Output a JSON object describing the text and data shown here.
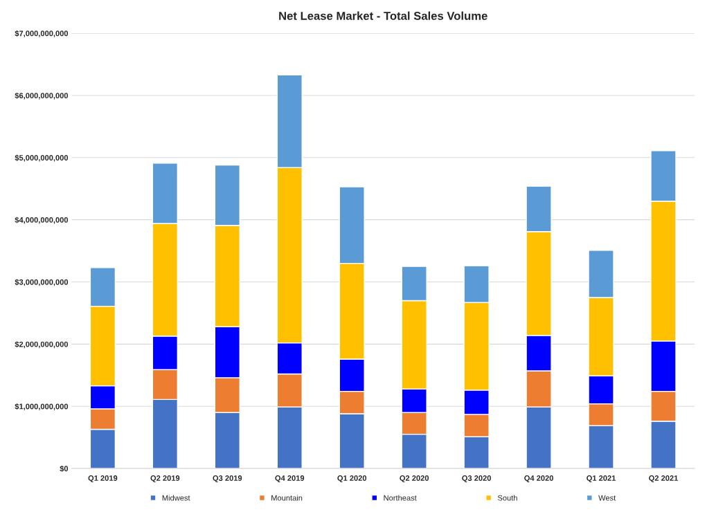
{
  "chart_data": {
    "type": "bar",
    "title": "Net Lease Market - Total Sales Volume",
    "stacked": true,
    "categories": [
      "Q1 2019",
      "Q2 2019",
      "Q3 2019",
      "Q4 2019",
      "Q1 2020",
      "Q2 2020",
      "Q3 2020",
      "Q4 2020",
      "Q1 2021",
      "Q2 2021"
    ],
    "series": [
      {
        "name": "Midwest",
        "color": "#4472c4",
        "values": [
          630000000,
          1110000000,
          900000000,
          990000000,
          880000000,
          550000000,
          510000000,
          990000000,
          690000000,
          760000000
        ]
      },
      {
        "name": "Mountain",
        "color": "#ed7d31",
        "values": [
          330000000,
          480000000,
          560000000,
          530000000,
          360000000,
          350000000,
          360000000,
          580000000,
          350000000,
          480000000
        ]
      },
      {
        "name": "Northeast",
        "color": "#0000ff",
        "values": [
          370000000,
          540000000,
          820000000,
          500000000,
          520000000,
          380000000,
          390000000,
          570000000,
          450000000,
          810000000
        ]
      },
      {
        "name": "South",
        "color": "#ffc000",
        "values": [
          1280000000,
          1810000000,
          1630000000,
          2820000000,
          1540000000,
          1420000000,
          1410000000,
          1670000000,
          1260000000,
          2250000000
        ]
      },
      {
        "name": "West",
        "color": "#5b9bd5",
        "values": [
          620000000,
          970000000,
          970000000,
          1490000000,
          1230000000,
          550000000,
          590000000,
          730000000,
          760000000,
          810000000
        ]
      }
    ],
    "ylim": [
      0,
      7000000000
    ],
    "yticks": [
      {
        "value": 0,
        "label": "$0"
      },
      {
        "value": 1000000000,
        "label": "$1,000,000,000"
      },
      {
        "value": 2000000000,
        "label": "$2,000,000,000"
      },
      {
        "value": 3000000000,
        "label": "$3,000,000,000"
      },
      {
        "value": 4000000000,
        "label": "$4,000,000,000"
      },
      {
        "value": 5000000000,
        "label": "$5,000,000,000"
      },
      {
        "value": 6000000000,
        "label": "$6,000,000,000"
      },
      {
        "value": 7000000000,
        "label": "$7,000,000,000"
      }
    ],
    "grid": "y",
    "legend": "bottom"
  }
}
